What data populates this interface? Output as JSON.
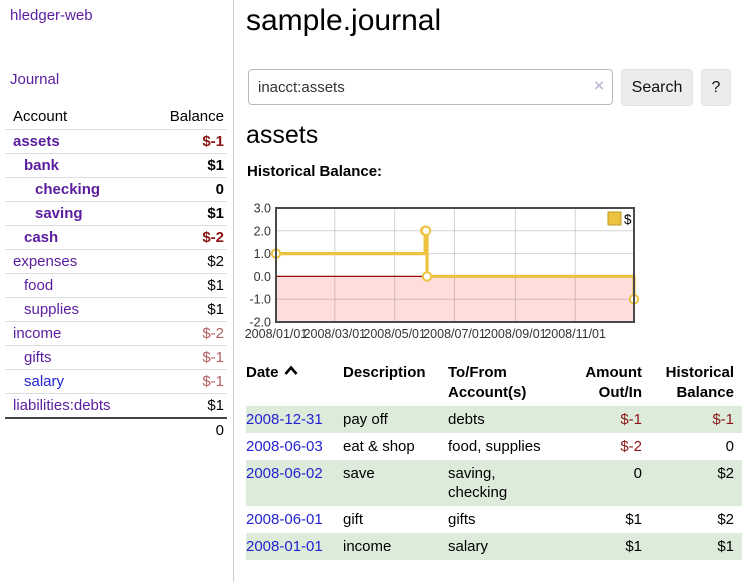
{
  "colors": {
    "link_purple": "#5a1d9e",
    "link_blue": "#2323d2",
    "neg_strong": "#8b1515",
    "neg_soft": "#b25f5f",
    "row_green": "#ddebdb",
    "series_yellow": "#edc240",
    "neg_region_pink": "#ffdddd",
    "zero_line_red": "#990000"
  },
  "sidebar": {
    "title": "hledger-web",
    "journal_link": "Journal",
    "accounts": {
      "headers": {
        "account": "Account",
        "balance": "Balance"
      },
      "rows": [
        {
          "name": "assets",
          "balance": "$-1",
          "level": 1,
          "bold": true,
          "neg": true,
          "link": "purple"
        },
        {
          "name": "bank",
          "balance": "$1",
          "level": 2,
          "bold": true,
          "neg": false,
          "link": "purple"
        },
        {
          "name": "checking",
          "balance": "0",
          "level": 3,
          "bold": true,
          "neg": false,
          "link": "purple"
        },
        {
          "name": "saving",
          "balance": "$1",
          "level": 3,
          "bold": true,
          "neg": false,
          "link": "purple"
        },
        {
          "name": "cash",
          "balance": "$-2",
          "level": 2,
          "bold": true,
          "neg": true,
          "link": "purple"
        },
        {
          "name": "expenses",
          "balance": "$2",
          "level": 1,
          "bold": false,
          "neg": false,
          "link": "purple"
        },
        {
          "name": "food",
          "balance": "$1",
          "level": 2,
          "bold": false,
          "neg": false,
          "link": "purple"
        },
        {
          "name": "supplies",
          "balance": "$1",
          "level": 2,
          "bold": false,
          "neg": false,
          "link": "purple"
        },
        {
          "name": "income",
          "balance": "$-2",
          "level": 1,
          "bold": false,
          "neg": true,
          "link": "purple"
        },
        {
          "name": "gifts",
          "balance": "$-1",
          "level": 2,
          "bold": false,
          "neg": true,
          "link": "purple"
        },
        {
          "name": "salary",
          "balance": "$-1",
          "level": 2,
          "bold": false,
          "neg": true,
          "link": "blue"
        },
        {
          "name": "liabilities:debts",
          "balance": "$1",
          "level": 1,
          "bold": false,
          "neg": false,
          "link": "purple"
        }
      ],
      "total": "0"
    }
  },
  "main": {
    "title": "sample.journal",
    "search": {
      "value": "inacct:assets",
      "clear_icon": "×",
      "button_label": "Search",
      "help_label": "?"
    },
    "account_heading": "assets",
    "chart_label": "Historical Balance:"
  },
  "chart_data": {
    "type": "line",
    "title": "Historical Balance:",
    "step": true,
    "series": [
      {
        "name": "$",
        "color": "#edc240",
        "points": [
          {
            "x": "2008-01-01",
            "y": 1
          },
          {
            "x": "2008-06-01",
            "y": 2
          },
          {
            "x": "2008-06-02",
            "y": 2
          },
          {
            "x": "2008-06-03",
            "y": 0
          },
          {
            "x": "2008-12-31",
            "y": -1
          }
        ]
      }
    ],
    "x_ticks": [
      "2008/01/01",
      "2008/03/01",
      "2008/05/01",
      "2008/07/01",
      "2008/09/01",
      "2008/11/01"
    ],
    "y_ticks": [
      "3.0",
      "2.0",
      "1.0",
      "0.0",
      "-1.0",
      "-2.0"
    ],
    "xlim": [
      "2008-01-01",
      "2008-12-31"
    ],
    "ylim": [
      -2,
      3
    ],
    "grid": true,
    "legend": {
      "label": "$",
      "position": "top-right"
    },
    "negative_region": true
  },
  "register": {
    "headers": {
      "date": "Date",
      "description": "Description",
      "accounts": "To/From\nAccount(s)",
      "amount": "Amount\nOut/In",
      "balance": "Historical\nBalance"
    },
    "rows": [
      {
        "date": "2008-12-31",
        "description": "pay off",
        "accounts": "debts",
        "amount": "$-1",
        "amount_neg": true,
        "balance": "$-1",
        "balance_neg": true,
        "shade": true
      },
      {
        "date": "2008-06-03",
        "description": "eat & shop",
        "accounts": "food, supplies",
        "amount": "$-2",
        "amount_neg": true,
        "balance": "0",
        "balance_neg": false,
        "shade": false
      },
      {
        "date": "2008-06-02",
        "description": "save",
        "accounts": "saving, checking",
        "amount": "0",
        "amount_neg": false,
        "balance": "$2",
        "balance_neg": false,
        "shade": true
      },
      {
        "date": "2008-06-01",
        "description": "gift",
        "accounts": "gifts",
        "amount": "$1",
        "amount_neg": false,
        "balance": "$2",
        "balance_neg": false,
        "shade": false
      },
      {
        "date": "2008-01-01",
        "description": "income",
        "accounts": "salary",
        "amount": "$1",
        "amount_neg": false,
        "balance": "$1",
        "balance_neg": false,
        "shade": true
      }
    ]
  }
}
